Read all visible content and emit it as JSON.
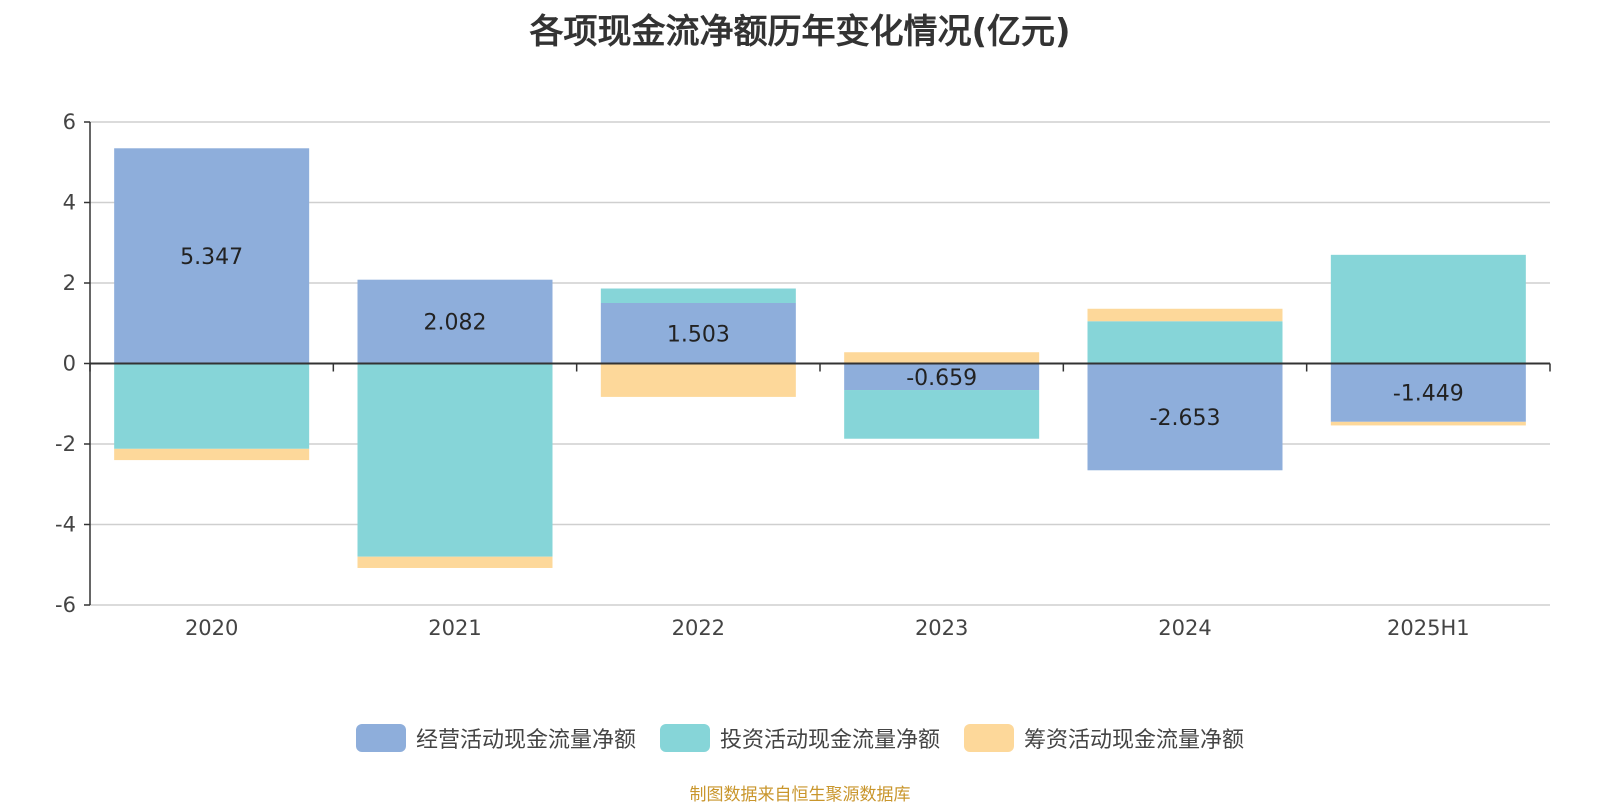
{
  "chart_data": {
    "type": "bar",
    "stacked": true,
    "title": "各项现金流净额历年变化情况(亿元)",
    "categories": [
      "2020",
      "2021",
      "2022",
      "2023",
      "2024",
      "2025H1"
    ],
    "ylim": [
      -6,
      6
    ],
    "yticks": [
      6,
      4,
      2,
      0,
      -2,
      -4,
      -6
    ],
    "grid": true,
    "legend_position": "bottom",
    "series": [
      {
        "name": "经营活动现金流量净额",
        "color": "#8eaedb",
        "values": [
          5.347,
          2.082,
          1.503,
          -0.659,
          -2.653,
          -1.449
        ]
      },
      {
        "name": "投资活动现金流量净额",
        "color": "#86d5d8",
        "values": [
          -2.12,
          -4.8,
          0.36,
          -1.21,
          1.05,
          2.7
        ]
      },
      {
        "name": "筹资活动现金流量净额",
        "color": "#fdd89a",
        "values": [
          -0.28,
          -0.28,
          -0.83,
          0.28,
          0.31,
          -0.09
        ]
      }
    ],
    "data_labels": [
      "5.347",
      "2.082",
      "1.503",
      "-0.659",
      "-2.653",
      "-1.449"
    ]
  },
  "source_text": "制图数据来自恒生聚源数据库"
}
